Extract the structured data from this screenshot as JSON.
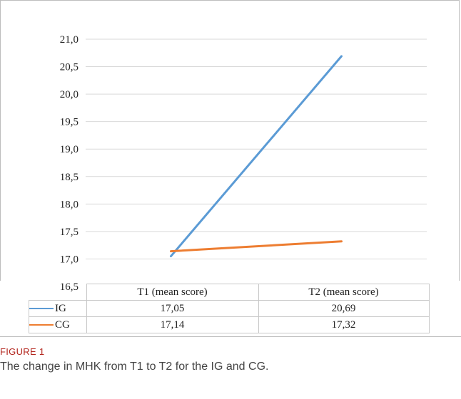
{
  "figure": {
    "label": "FIGURE 1",
    "caption": "The change in MHK from T1 to T2 for the IG and CG."
  },
  "chart_data": {
    "type": "line",
    "title": "",
    "xlabel": "",
    "ylabel": "",
    "categories": [
      "T1 (mean score)",
      "T2 (mean score)"
    ],
    "ylim": [
      16.5,
      21.0
    ],
    "yticks": [
      "21,0",
      "20,5",
      "20,0",
      "19,5",
      "19,0",
      "18,5",
      "18,0",
      "17,5",
      "17,0",
      "16,5"
    ],
    "grid": true,
    "legend": "data-table",
    "series": [
      {
        "name": "IG",
        "color": "#5b9bd5",
        "values": [
          17.05,
          20.69
        ],
        "labels": [
          "17,05",
          "20,69"
        ]
      },
      {
        "name": "CG",
        "color": "#ed7d31",
        "values": [
          17.14,
          17.32
        ],
        "labels": [
          "17,14",
          "17,32"
        ]
      }
    ]
  }
}
